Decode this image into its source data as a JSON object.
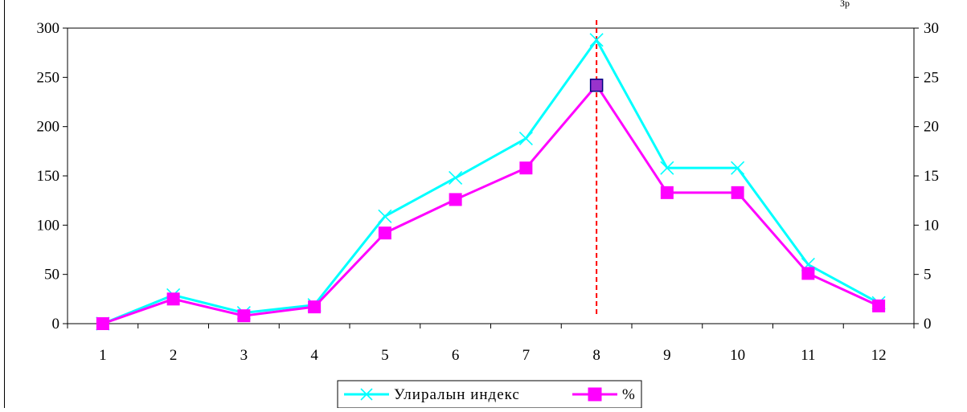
{
  "chart_data": {
    "type": "line",
    "categories": [
      "1",
      "2",
      "3",
      "4",
      "5",
      "6",
      "7",
      "8",
      "9",
      "10",
      "11",
      "12"
    ],
    "series": [
      {
        "name": "Улиралын индекс",
        "axis": "left",
        "color": "#00FFFF",
        "marker": "x",
        "values": [
          0,
          29,
          11,
          19,
          109,
          148,
          188,
          288,
          158,
          158,
          60,
          21
        ]
      },
      {
        "name": "%",
        "axis": "right",
        "color": "#FF00FF",
        "marker": "square",
        "values": [
          0,
          2.5,
          0.8,
          1.7,
          9.2,
          12.6,
          15.8,
          24.2,
          13.3,
          13.3,
          5.1,
          1.8
        ]
      }
    ],
    "y_left": {
      "min": 0,
      "max": 300,
      "ticks": [
        "0",
        "50",
        "100",
        "150",
        "200",
        "250",
        "300"
      ]
    },
    "y_right": {
      "min": 0,
      "max": 30,
      "ticks": [
        "0",
        "5",
        "10",
        "15",
        "20",
        "25",
        "30"
      ]
    },
    "reference_line": {
      "category": "8",
      "color": "#FF0000",
      "style": "dashed"
    },
    "highlight_point": {
      "series": "%",
      "category": "8",
      "fill": "#9933CC"
    },
    "legend": {
      "position": "bottom",
      "items": [
        "Улиралын индекс",
        "%"
      ]
    },
    "grid": false,
    "title": "",
    "xlabel": "",
    "ylabel": ""
  },
  "corner_text": "Зр"
}
